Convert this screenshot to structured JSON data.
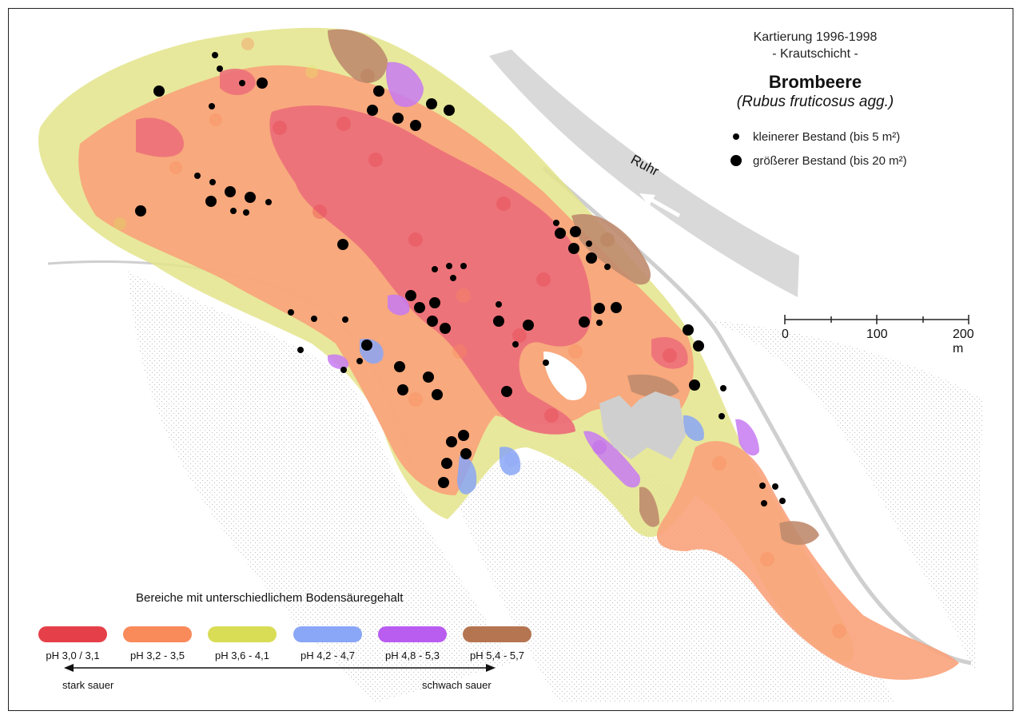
{
  "title": {
    "period": "Kartierung 1996-1998",
    "layer": "- Krautschicht -",
    "species": "Brombeere",
    "latin": "(Rubus fruticosus agg.)"
  },
  "dot_legend": {
    "small": "kleinerer Bestand (bis 5 m²)",
    "large": "größerer Bestand (bis 20 m²)"
  },
  "river": {
    "name": "Ruhr"
  },
  "scale": {
    "ticks": [
      "0",
      "100",
      "200 m"
    ]
  },
  "soil_legend": {
    "title": "Bereiche mit unterschiedlichem Bodensäuregehalt",
    "classes": [
      {
        "label": "pH 3,0 / 3,1",
        "color": "#e5404a"
      },
      {
        "label": "pH 3,2 - 3,5",
        "color": "#f98a5a"
      },
      {
        "label": "pH 3,6 - 4,1",
        "color": "#d9dc55"
      },
      {
        "label": "pH 4,2 - 4,7",
        "color": "#8aa6f6"
      },
      {
        "label": "pH 4,8 - 5,3",
        "color": "#b95cf0"
      },
      {
        "label": "pH 5,4 - 5,7",
        "color": "#b57551"
      }
    ],
    "gradient_left": "stark sauer",
    "gradient_right": "schwach sauer"
  },
  "colors": {
    "road": "#d6d6d6",
    "building": "#c8c8c8",
    "dots": "#000000"
  }
}
